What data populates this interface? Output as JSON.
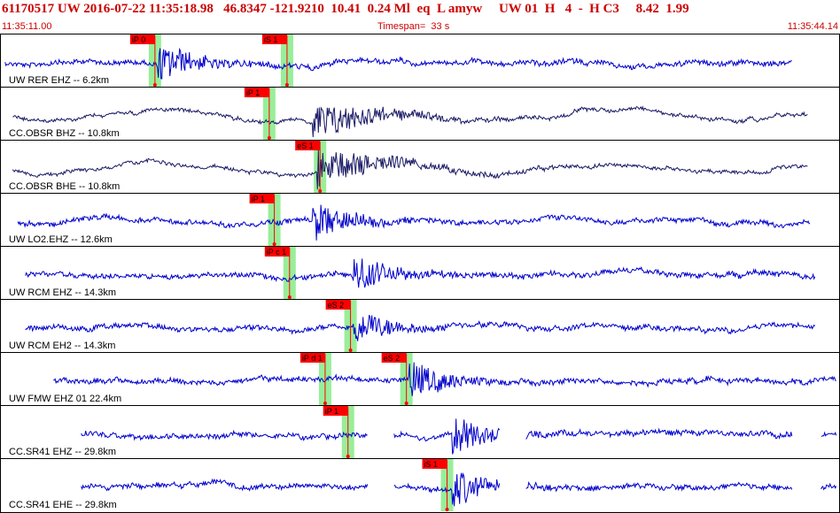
{
  "header": {
    "title": "61170517 UW 2016-07-22 11:35:18.98   46.8347 -121.9210  10.41  0.24 Ml  eq  L amyw     UW 01  H   4  -  H C3     8.42  1.99",
    "start_time": "11:35:11.00",
    "timespan": "Timespan=  33 s",
    "end_time": "11:35:44.14"
  },
  "colors": {
    "waveform_primary": "#0000cc",
    "waveform_alt": "#1a1a66",
    "pick_flag": "#ff0000",
    "pick_window": "#99ee99",
    "header_text": "#cc0000",
    "frame": "#000000"
  },
  "chart_data": {
    "type": "line",
    "x_range": [
      0,
      33
    ],
    "x_unit": "s",
    "traces": [
      {
        "label": "UW RER EHZ -- 6.2km",
        "color_key": "waveform_primary",
        "onset": 6.2,
        "data_start": 0.2,
        "data_end": 31.2,
        "picks": [
          {
            "label": "iP 0",
            "time": 6.1
          },
          {
            "label": "iS 1",
            "time": 11.3
          }
        ],
        "gaps": []
      },
      {
        "label": "CC.OBSR BHZ -- 10.8km",
        "color_key": "waveform_alt",
        "onset": 12.3,
        "data_start": 0.5,
        "data_end": 31.8,
        "picks": [
          {
            "label": "iP 1",
            "time": 10.6
          }
        ],
        "gaps": []
      },
      {
        "label": "CC.OBSR BHE -- 10.8km",
        "color_key": "waveform_alt",
        "onset": 12.5,
        "data_start": 0.5,
        "data_end": 31.8,
        "picks": [
          {
            "label": "eS 1",
            "time": 12.6
          }
        ],
        "gaps": []
      },
      {
        "label": "UW LO2.EHZ -- 12.6km",
        "color_key": "waveform_primary",
        "onset": 12.3,
        "data_start": 0.7,
        "data_end": 31.9,
        "picks": [
          {
            "label": "iP 1",
            "time": 10.8
          }
        ],
        "gaps": []
      },
      {
        "label": "UW RCM EHZ -- 14.3km",
        "color_key": "waveform_primary",
        "onset": 13.9,
        "data_start": 1.0,
        "data_end": 32.1,
        "picks": [
          {
            "label": "iP c 1",
            "time": 11.4
          }
        ],
        "gaps": []
      },
      {
        "label": "UW RCM EH2 -- 14.3km",
        "color_key": "waveform_primary",
        "onset": 13.9,
        "data_start": 1.0,
        "data_end": 32.1,
        "picks": [
          {
            "label": "eS 2",
            "time": 13.8
          }
        ],
        "gaps": []
      },
      {
        "label": "UW FMW EHZ 01 22.4km",
        "color_key": "waveform_primary",
        "onset": 16.1,
        "data_start": 2.1,
        "data_end": 33.3,
        "picks": [
          {
            "label": "iP d 1",
            "time": 12.8
          },
          {
            "label": "eS 2",
            "time": 16.0
          }
        ],
        "gaps": []
      },
      {
        "label": "CC.SR41 EHZ -- 29.8km",
        "color_key": "waveform_primary",
        "onset": 17.8,
        "data_start": 3.2,
        "data_end": 34.5,
        "picks": [
          {
            "label": "iP 1",
            "time": 13.7
          }
        ],
        "gaps": [
          [
            14.5,
            15.5
          ],
          [
            19.7,
            20.7
          ],
          [
            31.2,
            32.3
          ]
        ]
      },
      {
        "label": "CC.SR41 EHE -- 29.8km",
        "color_key": "waveform_primary",
        "onset": 17.8,
        "data_start": 3.2,
        "data_end": 34.5,
        "picks": [
          {
            "label": "iS 1",
            "time": 17.6
          }
        ],
        "gaps": [
          [
            14.5,
            15.5
          ],
          [
            19.7,
            20.7
          ],
          [
            31.2,
            32.3
          ]
        ]
      }
    ]
  }
}
